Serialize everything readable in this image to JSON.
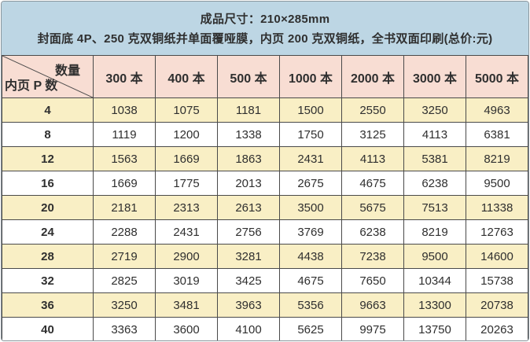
{
  "banner": {
    "line1": "成品尺寸：210×285mm",
    "line2": "封面底 4P、250 克双铜纸并单面覆哑膜，内页 200 克双铜纸，全书双面印刷(总价:元)"
  },
  "corner": {
    "top_right": "数量",
    "bottom_left": "内页 P 数"
  },
  "colors": {
    "banner_bg": "#bdd6e4",
    "header_row_bg": "#f8ddd3",
    "alt_row_bg": "#f9efc5",
    "plain_row_bg": "#ffffff",
    "grid_line": "#4a4a4a",
    "outer_border": "#8a959c",
    "text": "#2f2f2f"
  },
  "chart_data": {
    "type": "table",
    "title": "成品尺寸：210×285mm",
    "subtitle": "封面底 4P、250 克双铜纸并单面覆哑膜，内页 200 克双铜纸，全书双面印刷(总价:元)",
    "corner_axis_top": "数量",
    "corner_axis_left": "内页 P 数",
    "columns": [
      "300 本",
      "400 本",
      "500 本",
      "1000 本",
      "2000 本",
      "3000 本",
      "5000 本"
    ],
    "rows": [
      {
        "label": "4",
        "values": [
          1038,
          1075,
          1181,
          1500,
          2550,
          3250,
          4963
        ]
      },
      {
        "label": "8",
        "values": [
          1119,
          1200,
          1338,
          1750,
          3125,
          4113,
          6381
        ]
      },
      {
        "label": "12",
        "values": [
          1563,
          1669,
          1863,
          2431,
          4113,
          5381,
          8219
        ]
      },
      {
        "label": "16",
        "values": [
          1669,
          1775,
          2013,
          2675,
          4675,
          6238,
          9500
        ]
      },
      {
        "label": "20",
        "values": [
          2181,
          2313,
          2613,
          3500,
          5675,
          7513,
          11338
        ]
      },
      {
        "label": "24",
        "values": [
          2288,
          2431,
          2756,
          3769,
          6238,
          8219,
          12763
        ]
      },
      {
        "label": "28",
        "values": [
          2719,
          2900,
          3281,
          4438,
          7238,
          9500,
          14600
        ]
      },
      {
        "label": "32",
        "values": [
          2825,
          3019,
          3425,
          4675,
          7650,
          10344,
          15738
        ]
      },
      {
        "label": "36",
        "values": [
          3250,
          3481,
          3963,
          5356,
          9663,
          13300,
          20738
        ]
      },
      {
        "label": "40",
        "values": [
          3363,
          3600,
          4100,
          5625,
          9975,
          13750,
          20263
        ]
      }
    ]
  }
}
